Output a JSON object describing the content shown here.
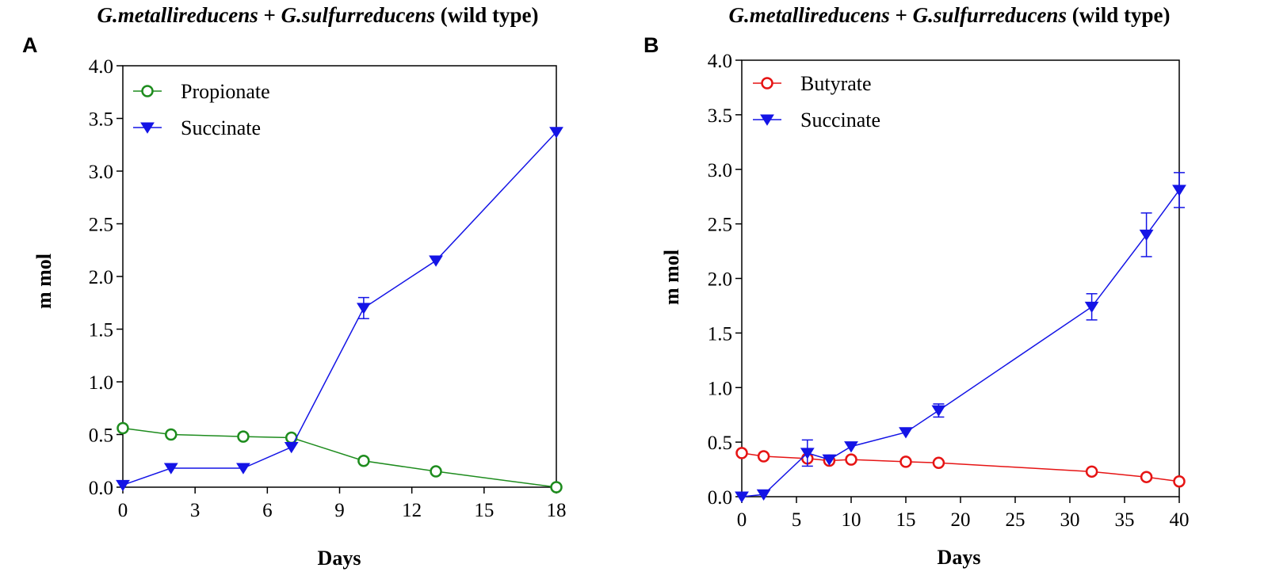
{
  "chart_data": [
    {
      "type": "line",
      "panel_label": "A",
      "title_parts": [
        "G.metallireducens",
        " + ",
        "G.sulfurreducens",
        " (wild type)"
      ],
      "xlabel": "Days",
      "ylabel": "m mol",
      "xlim": [
        0,
        18
      ],
      "ylim": [
        0,
        4
      ],
      "xticks": [
        0,
        3,
        6,
        9,
        12,
        15,
        18
      ],
      "xtick_labels": [
        "0",
        "3",
        "6",
        "9",
        "12",
        "15",
        "18"
      ],
      "yticks": [
        0,
        0.5,
        1,
        1.5,
        2,
        2.5,
        3,
        3.5,
        4
      ],
      "ytick_labels": [
        "0.0",
        "0.5",
        "1.0",
        "1.5",
        "2.0",
        "2.5",
        "3.0",
        "3.5",
        "4.0"
      ],
      "legend_position": "top-left",
      "series": [
        {
          "name": "Propionate",
          "color": "#1e8c1e",
          "marker": "open-circle",
          "points": [
            {
              "x": 0,
              "y": 0.56
            },
            {
              "x": 2,
              "y": 0.5
            },
            {
              "x": 5,
              "y": 0.48
            },
            {
              "x": 7,
              "y": 0.47
            },
            {
              "x": 10,
              "y": 0.25
            },
            {
              "x": 13,
              "y": 0.15
            },
            {
              "x": 18,
              "y": 0.0
            }
          ]
        },
        {
          "name": "Succinate",
          "color": "#1414e6",
          "marker": "filled-down-triangle",
          "points": [
            {
              "x": 0,
              "y": 0.02
            },
            {
              "x": 2,
              "y": 0.18
            },
            {
              "x": 5,
              "y": 0.18
            },
            {
              "x": 7,
              "y": 0.38
            },
            {
              "x": 10,
              "y": 1.7,
              "err": 0.1
            },
            {
              "x": 13,
              "y": 2.15
            },
            {
              "x": 18,
              "y": 3.37
            }
          ]
        }
      ]
    },
    {
      "type": "line",
      "panel_label": "B",
      "title_parts": [
        "G.metallireducens",
        " + ",
        "G.sulfurreducens",
        " (wild type)"
      ],
      "xlabel": "Days",
      "ylabel": "m mol",
      "xlim": [
        0,
        40
      ],
      "ylim": [
        0,
        4
      ],
      "xticks": [
        0,
        5,
        10,
        15,
        20,
        25,
        30,
        35,
        40
      ],
      "xtick_labels": [
        "0",
        "5",
        "10",
        "15",
        "20",
        "25",
        "30",
        "35",
        "40"
      ],
      "yticks": [
        0,
        0.5,
        1,
        1.5,
        2,
        2.5,
        3,
        3.5,
        4
      ],
      "ytick_labels": [
        "0.0",
        "0.5",
        "1.0",
        "1.5",
        "2.0",
        "2.5",
        "3.0",
        "3.5",
        "4.0"
      ],
      "legend_position": "top-left",
      "series": [
        {
          "name": "Butyrate",
          "color": "#e61414",
          "marker": "open-circle",
          "points": [
            {
              "x": 0,
              "y": 0.4
            },
            {
              "x": 2,
              "y": 0.37
            },
            {
              "x": 6,
              "y": 0.35
            },
            {
              "x": 8,
              "y": 0.33
            },
            {
              "x": 10,
              "y": 0.34
            },
            {
              "x": 15,
              "y": 0.32
            },
            {
              "x": 18,
              "y": 0.31
            },
            {
              "x": 32,
              "y": 0.23
            },
            {
              "x": 37,
              "y": 0.18
            },
            {
              "x": 40,
              "y": 0.14
            }
          ]
        },
        {
          "name": "Succinate",
          "color": "#1414e6",
          "marker": "filled-down-triangle",
          "points": [
            {
              "x": 0,
              "y": 0.0
            },
            {
              "x": 2,
              "y": 0.02
            },
            {
              "x": 6,
              "y": 0.4,
              "err": 0.12
            },
            {
              "x": 8,
              "y": 0.34
            },
            {
              "x": 10,
              "y": 0.46
            },
            {
              "x": 15,
              "y": 0.59
            },
            {
              "x": 18,
              "y": 0.79,
              "err": 0.06
            },
            {
              "x": 32,
              "y": 1.74,
              "err": 0.12
            },
            {
              "x": 37,
              "y": 2.4,
              "err": 0.2
            },
            {
              "x": 40,
              "y": 2.81,
              "err": 0.16
            }
          ]
        }
      ]
    }
  ]
}
